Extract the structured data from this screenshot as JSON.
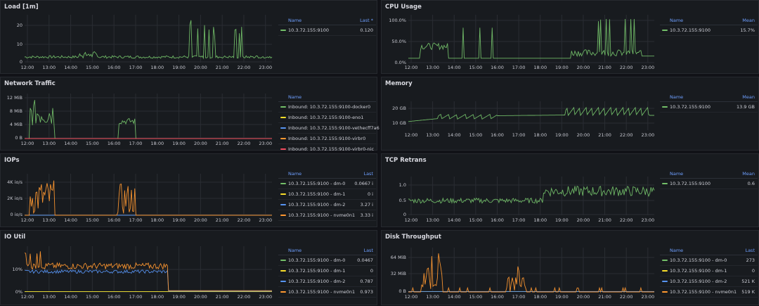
{
  "colors": {
    "green": "#73bf69",
    "yellow": "#fade2a",
    "blue": "#5794f2",
    "orange": "#ff9830",
    "red": "#f2495c",
    "grid": "#2a2d33"
  },
  "time_ticks": [
    "12:00",
    "13:00",
    "14:00",
    "15:00",
    "16:00",
    "17:00",
    "18:00",
    "19:00",
    "20:00",
    "21:00",
    "22:00",
    "23:00"
  ],
  "panels": [
    {
      "title": "Load [1m]",
      "y_ticks": [
        "20",
        "10",
        "0"
      ],
      "value_header": "Last *",
      "series": [
        {
          "name": "10.3.72.155:9100",
          "value": "0.120"
        }
      ]
    },
    {
      "title": "CPU Usage",
      "y_ticks": [
        "100.0%",
        "50.0%",
        "0.0%"
      ],
      "value_header": "Mean",
      "series": [
        {
          "name": "10.3.72.155:9100",
          "value": "15.7%"
        }
      ]
    },
    {
      "title": "Network Traffic",
      "y_ticks": [
        "12 MiB",
        "8 MiB",
        "4 MiB",
        "0 B"
      ],
      "value_header": "",
      "series": [
        {
          "name": "Inbound: 10.3.72.155:9100-docker0",
          "value": ""
        },
        {
          "name": "Inbound: 10.3.72.155:9100-eno1",
          "value": ""
        },
        {
          "name": "Inbound: 10.3.72.155:9100-vethecff7a6",
          "value": ""
        },
        {
          "name": "Inbound: 10.3.72.155:9100-virbr0",
          "value": ""
        },
        {
          "name": "Inbound: 10.3.72.155:9100-virbr0-nic",
          "value": ""
        }
      ]
    },
    {
      "title": "Memory",
      "y_ticks": [
        "20 GB",
        "10 GB"
      ],
      "value_header": "Mean",
      "series": [
        {
          "name": "10.3.72.155:9100",
          "value": "13.9 GB"
        }
      ]
    },
    {
      "title": "IOPs",
      "y_ticks": [
        "4K io/s",
        "2K io/s",
        "0 io/s"
      ],
      "value_header": "Last",
      "series": [
        {
          "name": "10.3.72.155:9100 - dm-0",
          "value": "0.0667 i"
        },
        {
          "name": "10.3.72.155:9100 - dm-1",
          "value": "0 i"
        },
        {
          "name": "10.3.72.155:9100 - dm-2",
          "value": "3.27 i"
        },
        {
          "name": "10.3.72.155:9100 - nvme0n1",
          "value": "3.33 i"
        }
      ]
    },
    {
      "title": "TCP Retrans",
      "y_ticks": [
        "1.0",
        "0.5",
        "0"
      ],
      "value_header": "Mean",
      "series": [
        {
          "name": "10.3.72.155:9100",
          "value": "0.6"
        }
      ]
    },
    {
      "title": "IO Util",
      "y_ticks": [
        "10%",
        "0%"
      ],
      "value_header": "Last",
      "series": [
        {
          "name": "10.3.72.155:9100 - dm-0",
          "value": "0.0467"
        },
        {
          "name": "10.3.72.155:9100 - dm-1",
          "value": "0"
        },
        {
          "name": "10.3.72.155:9100 - dm-2",
          "value": "0.787"
        },
        {
          "name": "10.3.72.155:9100 - nvme0n1",
          "value": "0.973"
        }
      ]
    },
    {
      "title": "Disk Throughput",
      "y_ticks": [
        "64 MiB",
        "32 MiB",
        "0 B"
      ],
      "value_header": "Last",
      "series": [
        {
          "name": "10.3.72.155:9100 - dm-0",
          "value": "273"
        },
        {
          "name": "10.3.72.155:9100 - dm-1",
          "value": "0"
        },
        {
          "name": "10.3.72.155:9100 - dm-2",
          "value": "521 K"
        },
        {
          "name": "10.3.72.155:9100 - nvme0n1",
          "value": "519 K"
        }
      ]
    }
  ]
}
